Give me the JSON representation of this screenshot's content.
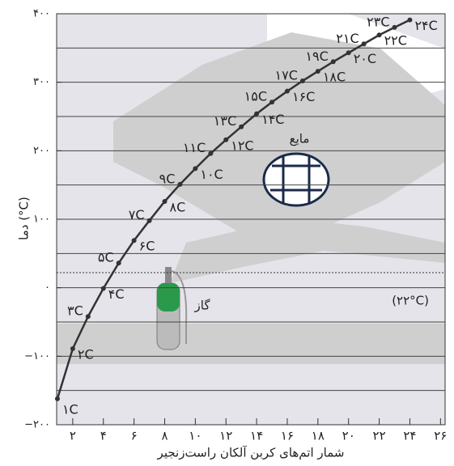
{
  "chart_data": {
    "type": "line",
    "x_label": "شمار اتم‌های کربن آلکان راست‌زنجیر",
    "y_label": "دما (°C)",
    "x": [
      1,
      2,
      3,
      4,
      5,
      6,
      7,
      8,
      9,
      10,
      11,
      12,
      13,
      14,
      15,
      16,
      17,
      18,
      19,
      20,
      21,
      22,
      23,
      24
    ],
    "series": [
      {
        "color": "#333333",
        "values": [
          -162,
          -89,
          -42,
          -1,
          36,
          69,
          98,
          126,
          151,
          174,
          196,
          216,
          235,
          254,
          271,
          287,
          302,
          316,
          330,
          343,
          356,
          369,
          380,
          391
        ],
        "point_labels": [
          "۱C",
          "۲C",
          "۳C",
          "۴C",
          "۵C",
          "۶C",
          "۷C",
          "۸C",
          "۹C",
          "۱۰C",
          "۱۱C",
          "۱۲C",
          "۱۳C",
          "۱۴C",
          "۱۵C",
          "۱۶C",
          "۱۷C",
          "۱۸C",
          "۱۹C",
          "۲۰C",
          "۲۱C",
          "۲۲C",
          "۲۳C",
          "۲۴C"
        ]
      }
    ],
    "xlim": [
      0.95,
      26.3
    ],
    "ylim": [
      -200,
      400
    ],
    "xticks": [
      {
        "value": 2,
        "label": "۲"
      },
      {
        "value": 4,
        "label": "۴"
      },
      {
        "value": 6,
        "label": "۶"
      },
      {
        "value": 8,
        "label": "۸"
      },
      {
        "value": 10,
        "label": "۱۰"
      },
      {
        "value": 12,
        "label": "۱۲"
      },
      {
        "value": 14,
        "label": "۱۴"
      },
      {
        "value": 16,
        "label": "۱۶"
      },
      {
        "value": 18,
        "label": "۱۸"
      },
      {
        "value": 20,
        "label": "۲۰"
      },
      {
        "value": 22,
        "label": "۲۲"
      },
      {
        "value": 24,
        "label": "۲۴"
      },
      {
        "value": 26,
        "label": "۲۶"
      }
    ],
    "yticks": [
      {
        "value": -200,
        "label": "−۲۰۰"
      },
      {
        "value": -100,
        "label": "−۱۰۰"
      },
      {
        "value": 0,
        "label": "۰"
      },
      {
        "value": 100,
        "label": "۱۰۰"
      },
      {
        "value": 200,
        "label": "۲۰۰"
      },
      {
        "value": 300,
        "label": "۳۰۰"
      },
      {
        "value": 400,
        "label": "۴۰۰"
      }
    ],
    "grid_lines": [
      -150,
      -100,
      -50,
      0,
      50,
      100,
      150,
      200,
      250,
      300,
      350
    ],
    "reference_line": {
      "value": 22,
      "label": "(۲۲°C)"
    },
    "region_labels": {
      "gas": "گاز",
      "liquid": "مایع"
    }
  }
}
